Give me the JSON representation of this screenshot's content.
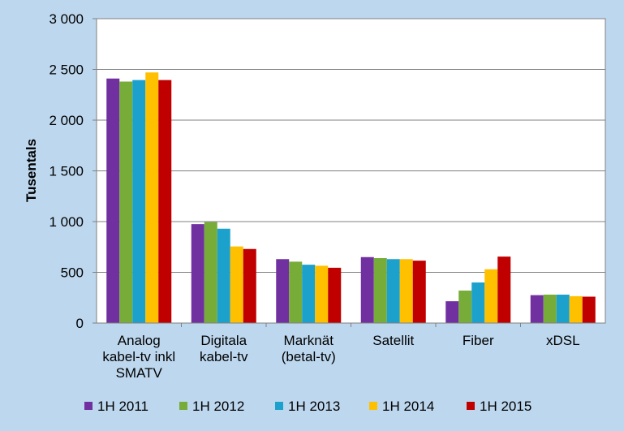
{
  "chart_data": {
    "type": "bar",
    "title": "",
    "xlabel": "",
    "ylabel": "Tusentals",
    "ylim": [
      0,
      3000
    ],
    "yticks": [
      0,
      500,
      1000,
      1500,
      2000,
      2500,
      3000
    ],
    "ytick_labels": [
      "0",
      "500",
      "1 000",
      "1 500",
      "2 000",
      "2 500",
      "3 000"
    ],
    "grid": true,
    "legend_position": "bottom",
    "categories": [
      [
        "Analog",
        "kabel-tv inkl",
        "SMATV"
      ],
      [
        "Digitala",
        "kabel-tv"
      ],
      [
        "Marknät",
        "(betal-tv)"
      ],
      [
        "Satellit"
      ],
      [
        "Fiber"
      ],
      [
        "xDSL"
      ]
    ],
    "series": [
      {
        "name": "1H 2011",
        "color": "#7030A0",
        "values": [
          2410,
          975,
          630,
          650,
          215,
          275
        ]
      },
      {
        "name": "1H 2012",
        "color": "#77AC39",
        "values": [
          2380,
          995,
          605,
          640,
          320,
          280
        ]
      },
      {
        "name": "1H 2013",
        "color": "#1BA1CB",
        "values": [
          2395,
          930,
          575,
          630,
          400,
          280
        ]
      },
      {
        "name": "1H 2014",
        "color": "#FFC000",
        "values": [
          2470,
          755,
          565,
          630,
          530,
          265
        ]
      },
      {
        "name": "1H 2015",
        "color": "#C00000",
        "values": [
          2395,
          730,
          545,
          615,
          655,
          260
        ]
      }
    ]
  }
}
